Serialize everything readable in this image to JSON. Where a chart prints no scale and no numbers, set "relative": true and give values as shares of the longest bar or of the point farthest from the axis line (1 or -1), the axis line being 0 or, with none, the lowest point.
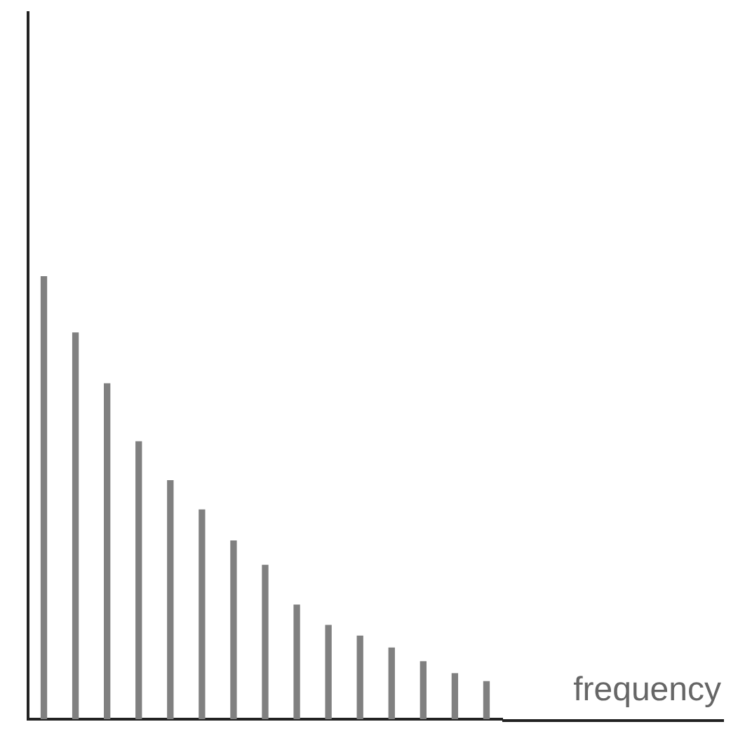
{
  "chart_data": {
    "type": "bar",
    "xlabel": "frequency",
    "relative": true,
    "categories": [
      null,
      null,
      null,
      null,
      null,
      null,
      null,
      null,
      null,
      null,
      null,
      null,
      null,
      null,
      null
    ],
    "values": [
      1,
      0.873,
      0.758,
      0.627,
      0.539,
      0.473,
      0.403,
      0.348,
      0.258,
      0.212,
      0.188,
      0.161,
      0.13,
      0.103,
      0.085
    ],
    "color": "#808080"
  }
}
